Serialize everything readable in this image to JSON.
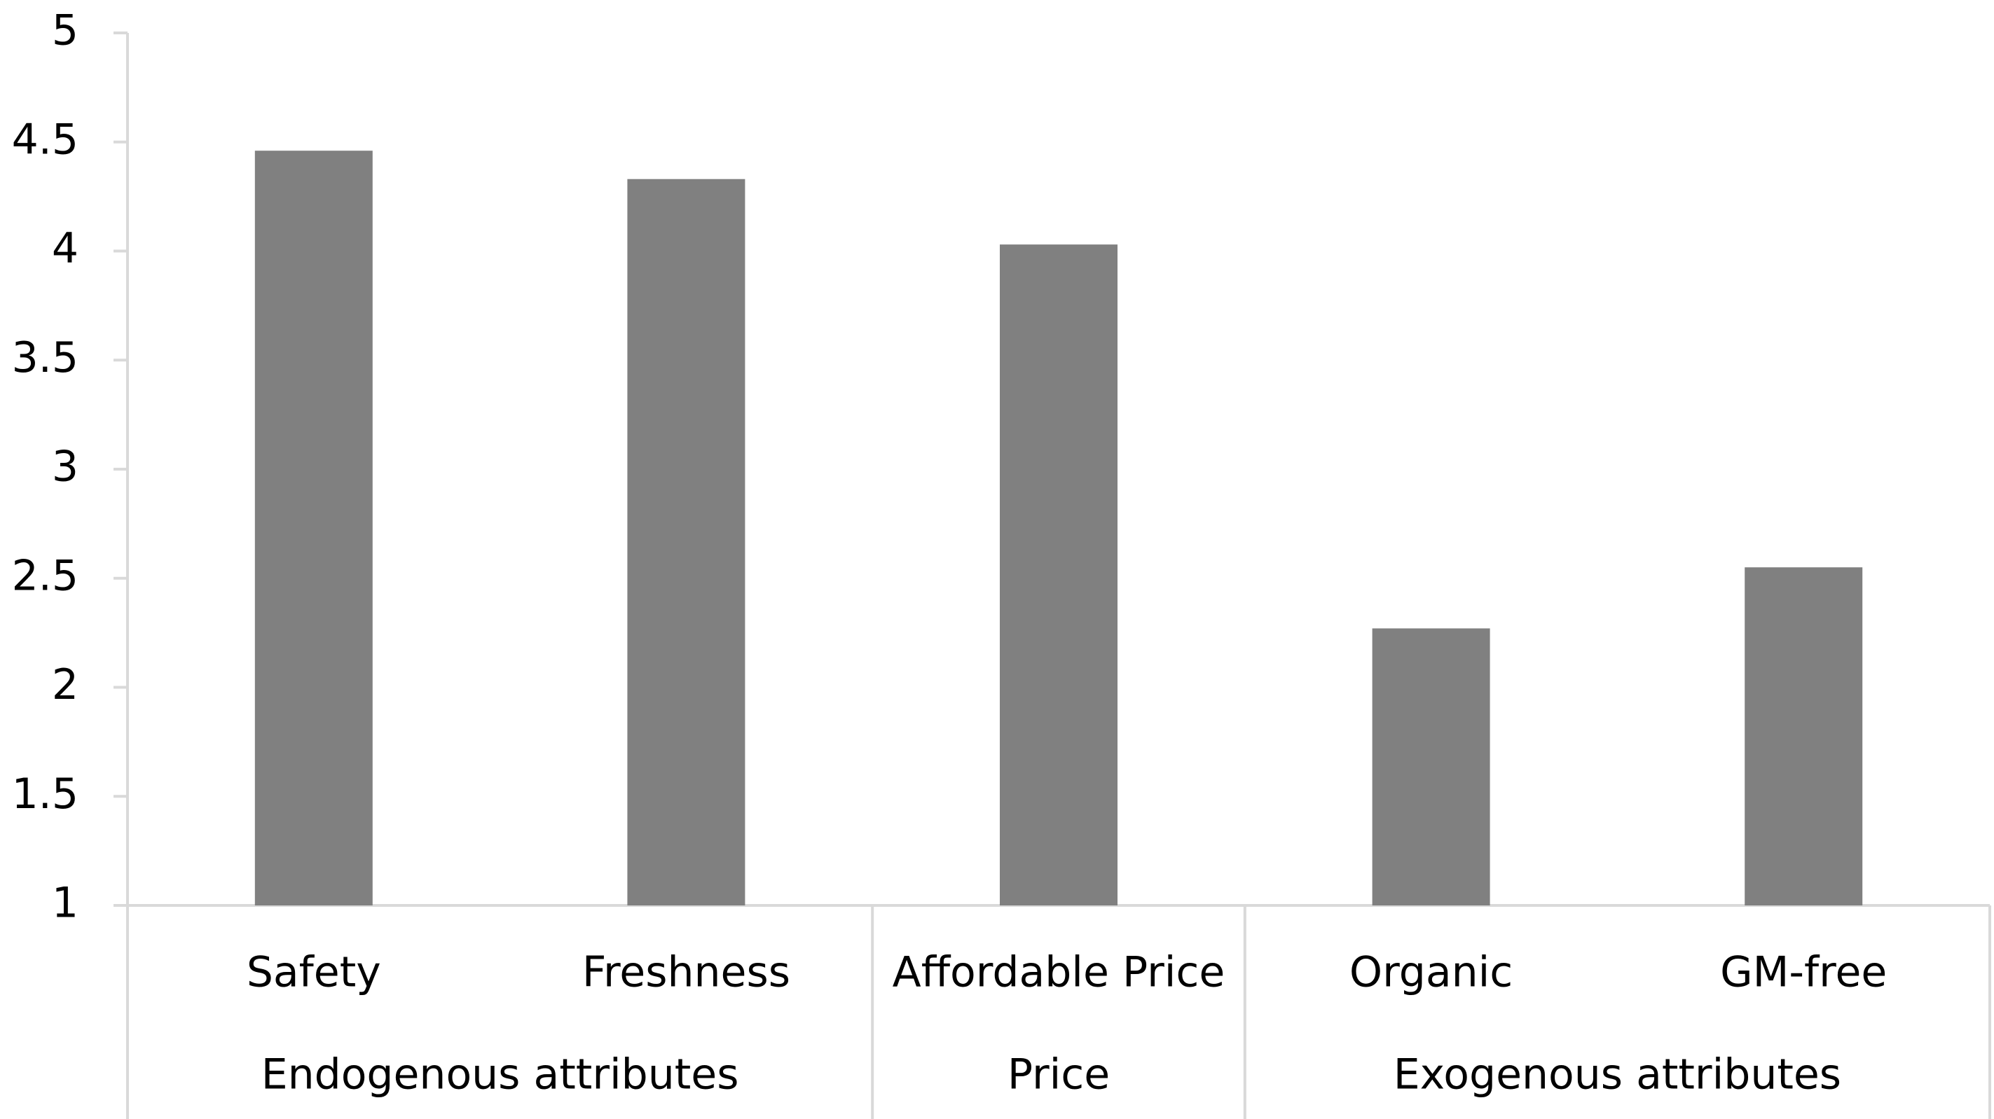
{
  "chart_data": {
    "type": "bar",
    "color": "#808080",
    "groups": [
      {
        "name": "Endogenous attributes",
        "categories": [
          "Safety",
          "Freshness"
        ],
        "values": [
          4.46,
          4.33
        ]
      },
      {
        "name": "Price",
        "categories": [
          "Affordable Price"
        ],
        "values": [
          4.03
        ]
      },
      {
        "name": "Exogenous attributes",
        "categories": [
          "Organic",
          "GM-free"
        ],
        "values": [
          2.27,
          2.55
        ]
      }
    ],
    "ylim": [
      1,
      5
    ],
    "yticks": [
      1,
      1.5,
      2,
      2.5,
      3,
      3.5,
      4,
      4.5,
      5
    ],
    "grid": false
  }
}
